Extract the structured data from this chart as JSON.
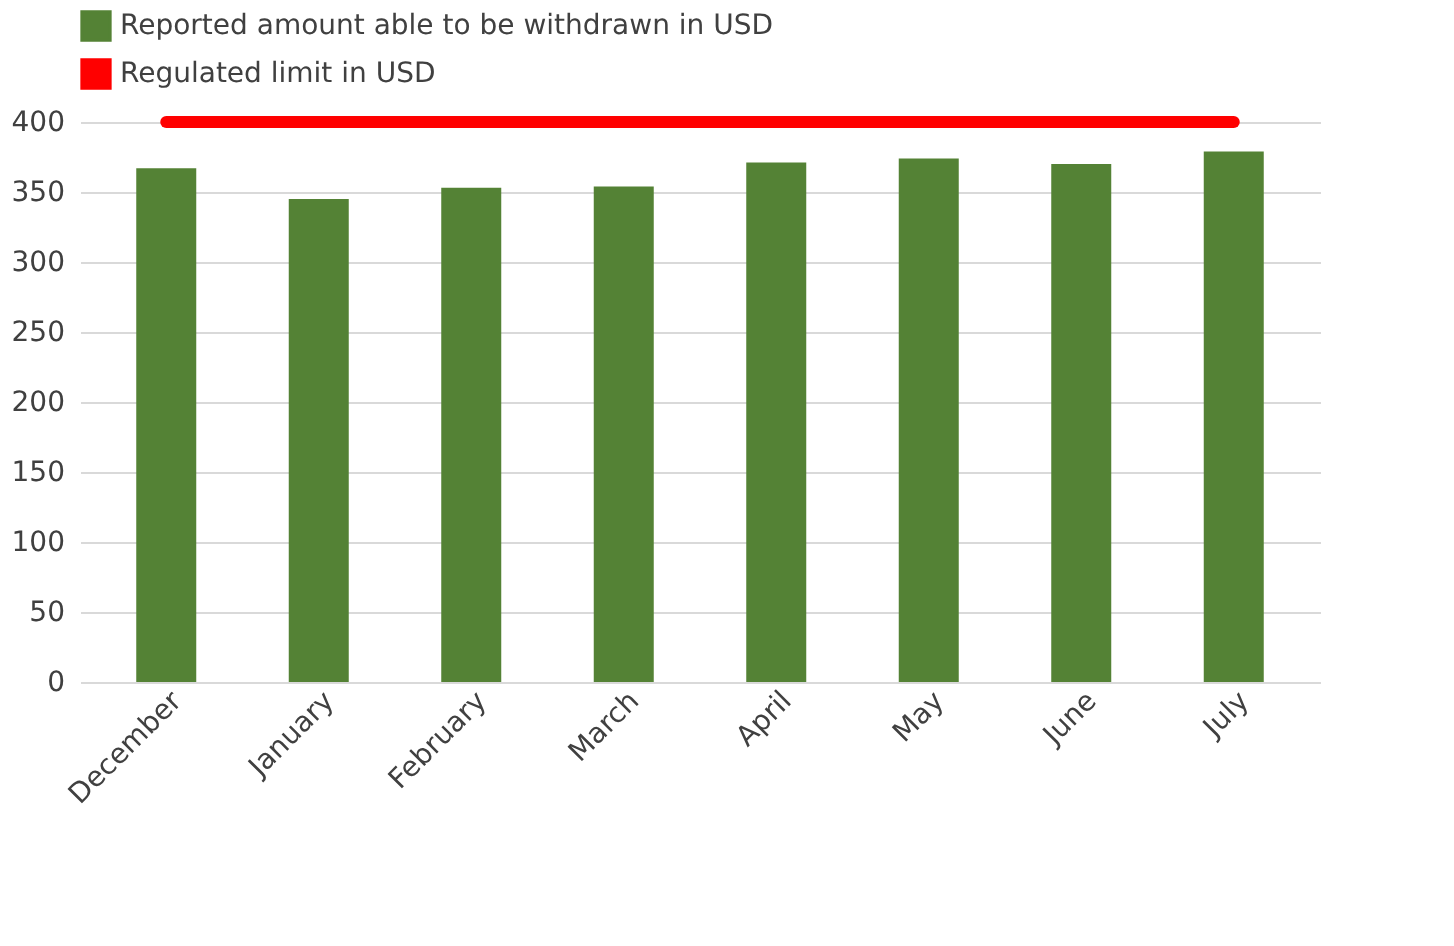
{
  "chart_data": {
    "type": "bar",
    "categories": [
      "December",
      "January",
      "February",
      "March",
      "April",
      "May",
      "June",
      "July"
    ],
    "series": [
      {
        "name": "Reported amount able to be withdrawn in USD",
        "color": "#548235",
        "values": [
          367,
          345,
          353,
          354,
          371,
          374,
          370,
          379
        ]
      },
      {
        "name": "Regulated limit in USD",
        "color": "#ff0000",
        "type": "line",
        "values": [
          400,
          400,
          400,
          400,
          400,
          400,
          400,
          400
        ]
      }
    ],
    "ylim": [
      0,
      400
    ],
    "yticks": [
      0,
      50,
      100,
      150,
      200,
      250,
      300,
      350,
      400
    ],
    "grid": "y",
    "legend": "top"
  }
}
